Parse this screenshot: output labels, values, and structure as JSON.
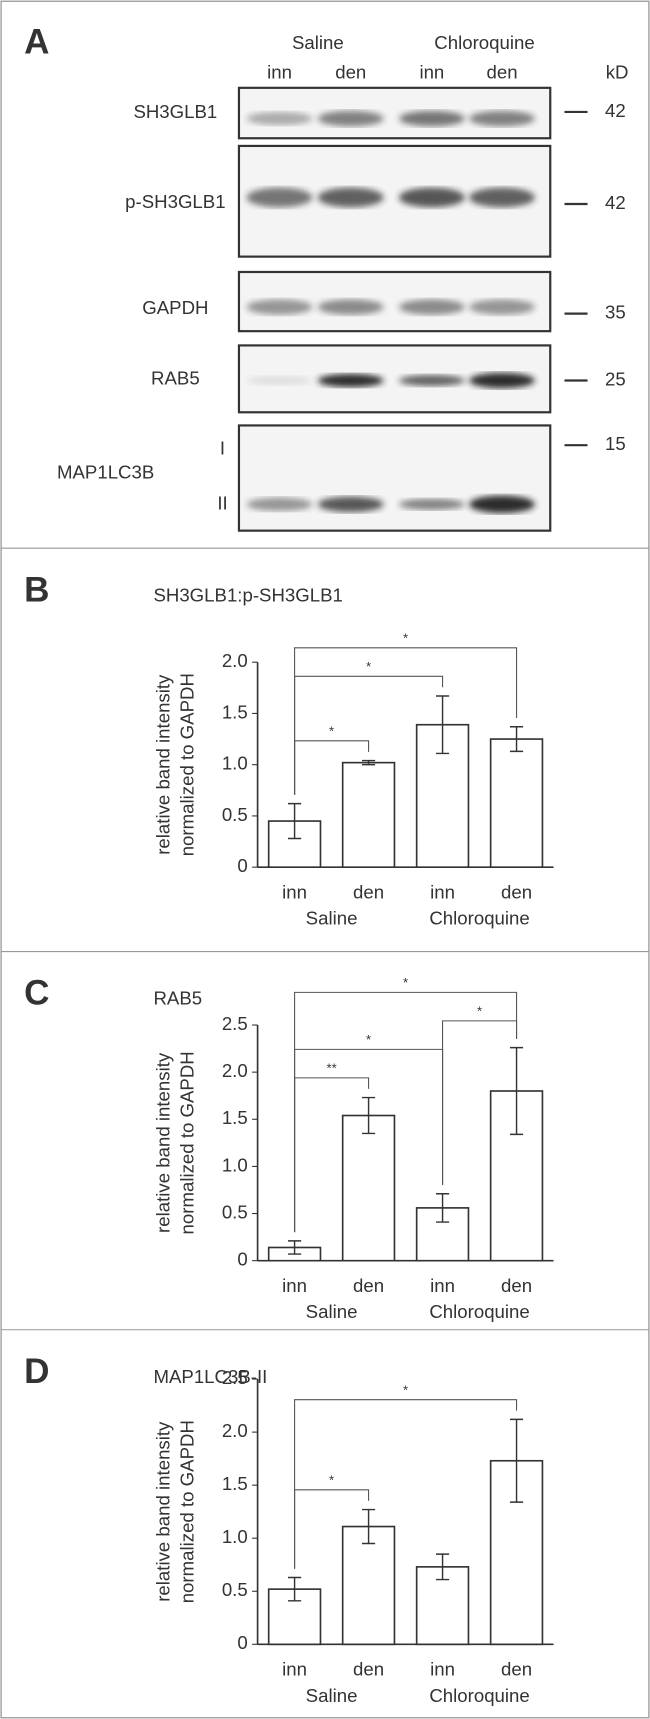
{
  "blot": {
    "label": "A",
    "groups": [
      "Saline",
      "Chloroquine"
    ],
    "lanes": [
      "inn",
      "den",
      "inn",
      "den"
    ],
    "unit": "kD",
    "rows": [
      {
        "name": "SH3GLB1",
        "kd": 42
      },
      {
        "name": "p-SH3GLB1",
        "kd": 42
      },
      {
        "name": "GAPDH",
        "kd": 35
      },
      {
        "name": "RAB5",
        "kd": 25
      },
      {
        "name": "MAP1LC3B",
        "kd": 15
      }
    ],
    "sublabels": [
      "I",
      "II"
    ]
  },
  "chart_data": [
    {
      "type": "bar",
      "label": "B",
      "title": "SH3GLB1:p-SH3GLB1",
      "ylabel": [
        "relative band intensity",
        "normalized to GAPDH"
      ],
      "categories": [
        "inn",
        "den",
        "inn",
        "den"
      ],
      "groups": [
        "Saline",
        "Chloroquine"
      ],
      "values": [
        0.45,
        1.02,
        1.39,
        1.25
      ],
      "errors": [
        0.17,
        0.02,
        0.28,
        0.12
      ],
      "ylim": [
        0,
        2
      ],
      "yticks": [
        0,
        0.5,
        {
          "value": 1,
          "label": "1.0"
        },
        1.5,
        {
          "value": 2,
          "label": "2.0"
        }
      ],
      "annotations": [
        {
          "pair": [
            0,
            1
          ],
          "label": "*"
        },
        {
          "pair": [
            0,
            2
          ],
          "label": "*"
        },
        {
          "pair": [
            0,
            3
          ],
          "label": "*"
        }
      ]
    },
    {
      "type": "bar",
      "label": "C",
      "title": "RAB5",
      "ylabel": [
        "relative band intensity",
        "normalized to GAPDH"
      ],
      "categories": [
        "inn",
        "den",
        "inn",
        "den"
      ],
      "groups": [
        "Saline",
        "Chloroquine"
      ],
      "values": [
        0.14,
        1.54,
        0.56,
        1.8
      ],
      "errors": [
        0.07,
        0.19,
        0.15,
        0.46
      ],
      "ylim": [
        0,
        2.5
      ],
      "yticks": [
        0,
        0.5,
        {
          "value": 1,
          "label": "1.0"
        },
        1.5,
        {
          "value": 2,
          "label": "2.0"
        },
        2.5
      ],
      "annotations": [
        {
          "pair": [
            0,
            1
          ],
          "label": "**"
        },
        {
          "pair": [
            0,
            2
          ],
          "label": "*"
        },
        {
          "pair": [
            2,
            3
          ],
          "label": "*"
        },
        {
          "pair": [
            0,
            3
          ],
          "label": "*"
        }
      ]
    },
    {
      "type": "bar",
      "label": "D",
      "title": "MAP1LC3B-II",
      "ylabel": [
        "relative band intensity",
        "normalized to GAPDH"
      ],
      "categories": [
        "inn",
        "den",
        "inn",
        "den"
      ],
      "groups": [
        "Saline",
        "Chloroquine"
      ],
      "values": [
        0.52,
        1.11,
        0.73,
        1.73
      ],
      "errors": [
        0.11,
        0.16,
        0.12,
        0.39
      ],
      "ylim": [
        0,
        2.5
      ],
      "yticks": [
        0,
        0.5,
        {
          "value": 1,
          "label": "1.0"
        },
        1.5,
        {
          "value": 2,
          "label": "2.0"
        },
        2.5
      ],
      "annotations": [
        {
          "pair": [
            0,
            1
          ],
          "label": "*"
        },
        {
          "pair": [
            0,
            3
          ],
          "label": "*"
        }
      ]
    }
  ]
}
